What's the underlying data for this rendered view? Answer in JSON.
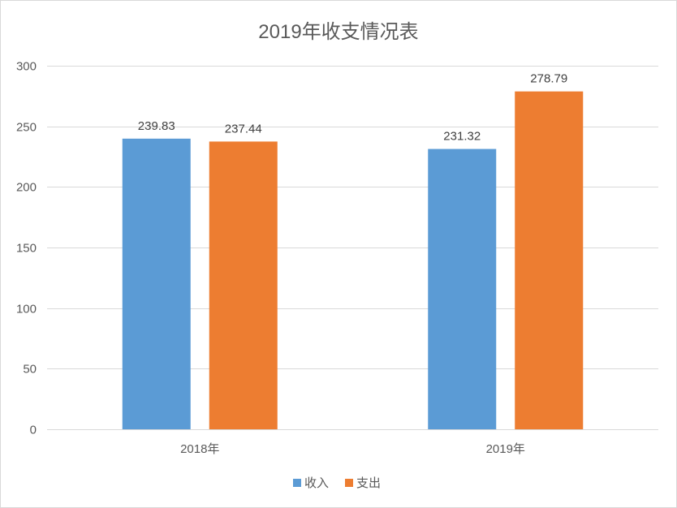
{
  "chart_data": {
    "type": "bar",
    "title": "2019年收支情况表",
    "categories": [
      "2018年",
      "2019年"
    ],
    "series": [
      {
        "name": "收入",
        "values": [
          239.83,
          231.32
        ],
        "color": "#5b9bd5"
      },
      {
        "name": "支出",
        "values": [
          237.44,
          278.79
        ],
        "color": "#ed7d31"
      }
    ],
    "ylim": [
      0,
      300
    ],
    "yticks": [
      0,
      50,
      100,
      150,
      200,
      250,
      300
    ],
    "data_labels": true,
    "grid": true,
    "legend_position": "bottom"
  }
}
